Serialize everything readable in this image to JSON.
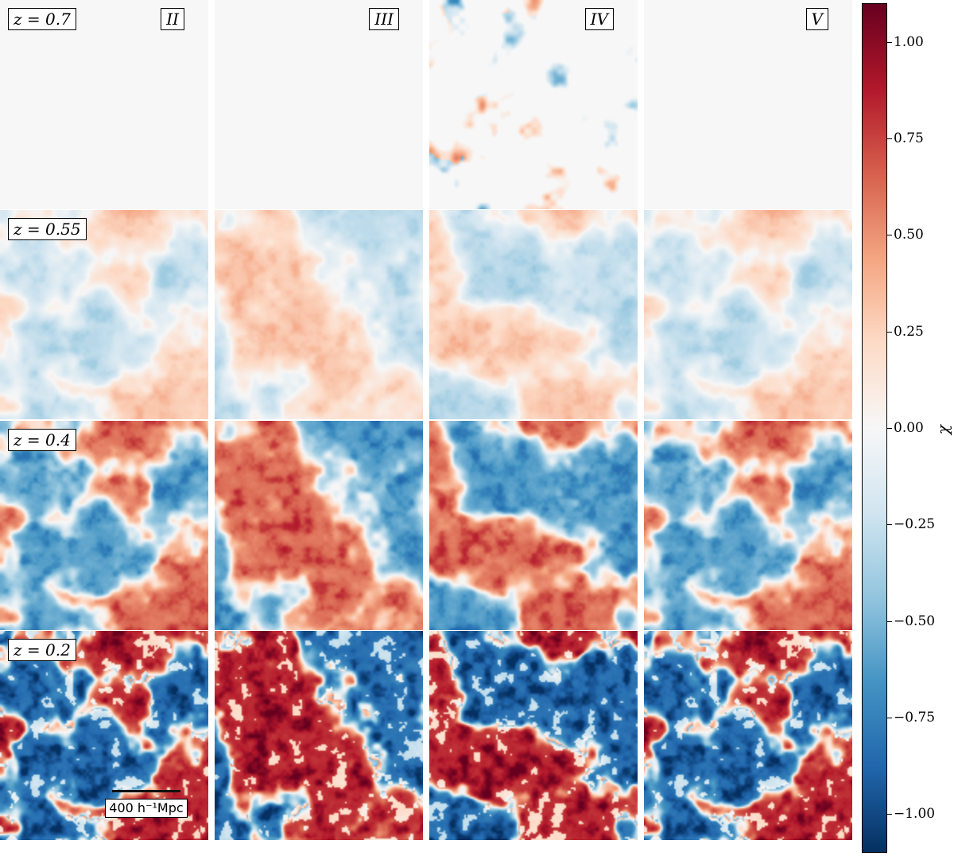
{
  "chart_data": {
    "type": "heatmap",
    "title": "",
    "redshift_rows": [
      {
        "label": "z = 0.7",
        "z": 0.7
      },
      {
        "label": "z = 0.55",
        "z": 0.55
      },
      {
        "label": "z = 0.4",
        "z": 0.4
      },
      {
        "label": "z = 0.2",
        "z": 0.2
      }
    ],
    "model_columns": [
      {
        "label": "II"
      },
      {
        "label": "III"
      },
      {
        "label": "IV"
      },
      {
        "label": "V"
      }
    ],
    "scalebar_label": "400 h⁻¹Mpc",
    "colorbar": {
      "label": "χ",
      "vmin": -1.1,
      "vmax": 1.1,
      "ticks": [
        1.0,
        0.75,
        0.5,
        0.25,
        0.0,
        -0.25,
        -0.5,
        -0.75,
        -1.0
      ],
      "tick_labels": [
        "1.00",
        "0.75",
        "0.50",
        "0.25",
        "0.00",
        "−0.25",
        "−0.50",
        "−0.75",
        "−1.00"
      ],
      "colormap": "RdBu_r",
      "low_color": "#053061",
      "mid_color": "#f7f7f7",
      "high_color": "#67001f"
    }
  }
}
